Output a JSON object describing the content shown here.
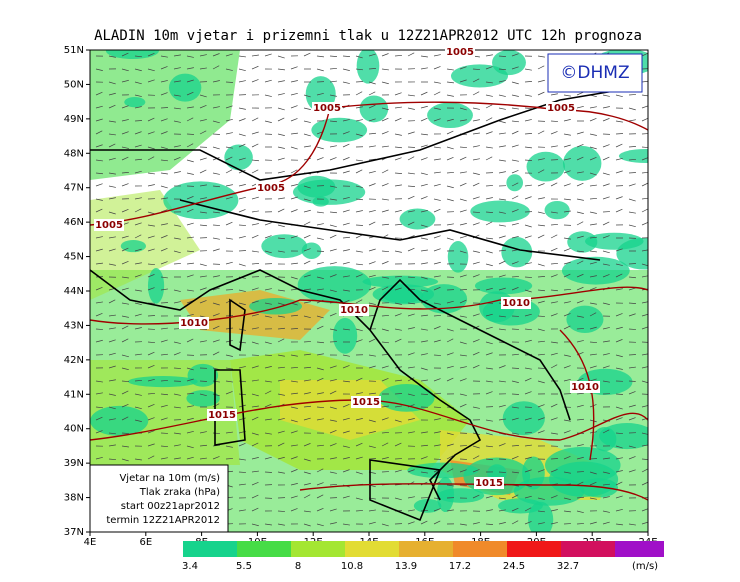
{
  "title": "ALADIN 10m vjetar i prizemni tlak u 12Z21APR2012 UTC 12h prognoza",
  "copyright": "©DHMZ",
  "lat_labels": [
    "37N",
    "38N",
    "39N",
    "40N",
    "41N",
    "42N",
    "43N",
    "44N",
    "45N",
    "46N",
    "47N",
    "48N",
    "49N",
    "50N",
    "51N"
  ],
  "lon_labels": [
    "4E",
    "6E",
    "8E",
    "10E",
    "12E",
    "14E",
    "16E",
    "18E",
    "20E",
    "22E",
    "24E"
  ],
  "isobars": [
    "1005",
    "1005",
    "1005",
    "1005",
    "1005",
    "1010",
    "1010",
    "1010",
    "1010",
    "1015",
    "1015",
    "1015"
  ],
  "info": [
    "Vjetar na 10m (m/s)",
    "Tlak zraka (hPa)",
    "start 00z21apr2012",
    "termin 12Z21APR2012"
  ],
  "legend": {
    "unit": "(m/s)",
    "levels": [
      {
        "label": "3.4",
        "color": "#16d38c"
      },
      {
        "label": "5.5",
        "color": "#46dc46"
      },
      {
        "label": "8",
        "color": "#a4e632"
      },
      {
        "label": "10.8",
        "color": "#e2dc34"
      },
      {
        "label": "13.9",
        "color": "#e6b030"
      },
      {
        "label": "17.2",
        "color": "#f08a2a"
      },
      {
        "label": "24.5",
        "color": "#f01818"
      },
      {
        "label": "32.7",
        "color": "#d2105e"
      }
    ],
    "last_color": "#a010c8"
  }
}
